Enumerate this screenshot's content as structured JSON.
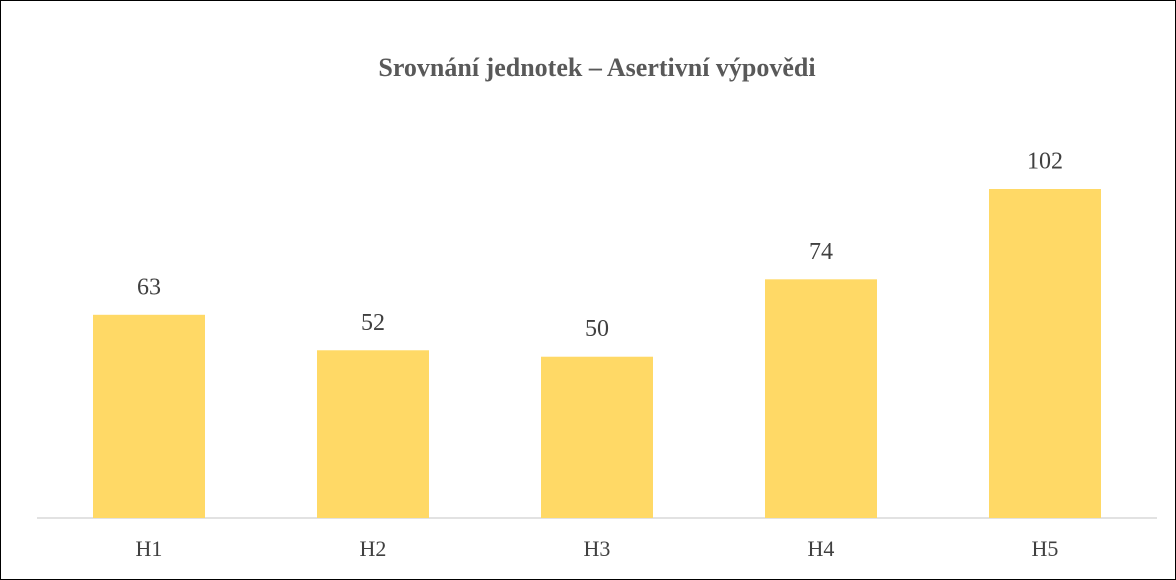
{
  "chart_data": {
    "type": "bar",
    "title": "Srovnání jednotek – Asertivní výpovědi",
    "categories": [
      "H1",
      "H2",
      "H3",
      "H4",
      "H5"
    ],
    "values": [
      63,
      52,
      50,
      74,
      102
    ],
    "color": "#ffd966"
  }
}
